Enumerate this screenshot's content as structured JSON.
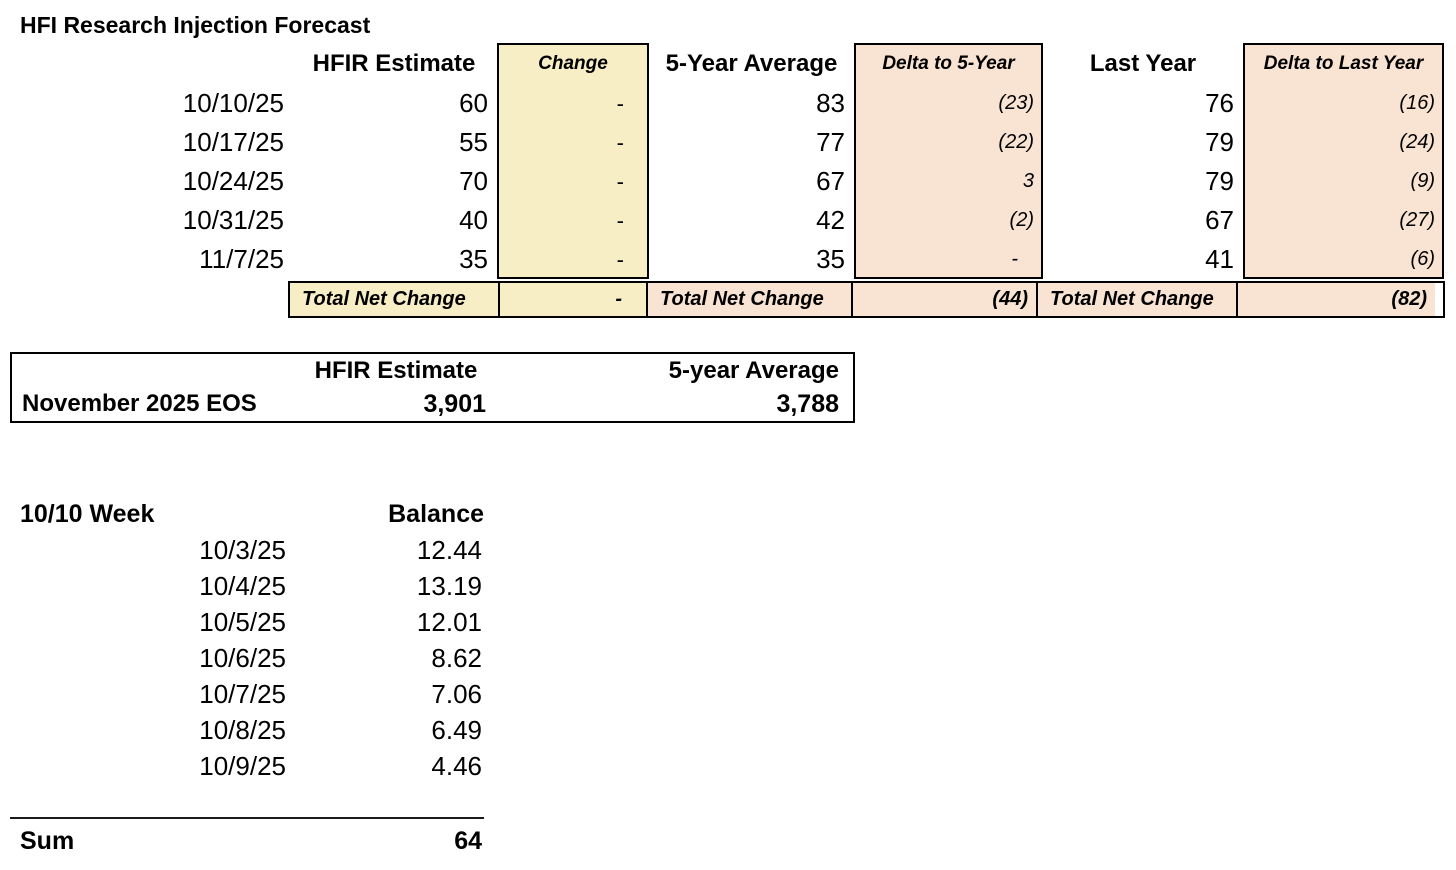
{
  "title": "HFI Research Injection Forecast",
  "colors": {
    "box_yellow": "#F7EEC5",
    "box_peach": "#F9E3D2",
    "grid_border": "#000000"
  },
  "forecast_table": {
    "headers": {
      "estimate": "HFIR Estimate",
      "change": "Change",
      "five_year_avg": "5-Year Average",
      "delta_five_year": "Delta to 5-Year",
      "last_year": "Last Year",
      "delta_last_year": "Delta to Last Year"
    },
    "rows": [
      {
        "date": "10/10/25",
        "estimate": "60",
        "change": "-",
        "five_year_avg": "83",
        "delta_five_year": "(23)",
        "last_year": "76",
        "delta_last_year": "(16)"
      },
      {
        "date": "10/17/25",
        "estimate": "55",
        "change": "-",
        "five_year_avg": "77",
        "delta_five_year": "(22)",
        "last_year": "79",
        "delta_last_year": "(24)"
      },
      {
        "date": "10/24/25",
        "estimate": "70",
        "change": "-",
        "five_year_avg": "67",
        "delta_five_year": "3",
        "last_year": "79",
        "delta_last_year": "(9)"
      },
      {
        "date": "10/31/25",
        "estimate": "40",
        "change": "-",
        "five_year_avg": "42",
        "delta_five_year": "(2)",
        "last_year": "67",
        "delta_last_year": "(27)"
      },
      {
        "date": "11/7/25",
        "estimate": "35",
        "change": "-",
        "five_year_avg": "35",
        "delta_five_year": "-",
        "last_year": "41",
        "delta_last_year": "(6)"
      }
    ],
    "total_row": {
      "label": "Total Net Change",
      "change": "-",
      "delta_five_year": "(44)",
      "delta_last_year": "(82)"
    }
  },
  "eos_table": {
    "headers": {
      "estimate": "HFIR Estimate",
      "five_year_avg": "5-year Average"
    },
    "row_label": "November 2025 EOS",
    "estimate": "3,901",
    "five_year_avg": "3,788"
  },
  "week_table": {
    "title": "10/10 Week",
    "balance_header": "Balance",
    "rows": [
      {
        "date": "10/3/25",
        "balance": "12.44"
      },
      {
        "date": "10/4/25",
        "balance": "13.19"
      },
      {
        "date": "10/5/25",
        "balance": "12.01"
      },
      {
        "date": "10/6/25",
        "balance": "8.62"
      },
      {
        "date": "10/7/25",
        "balance": "7.06"
      },
      {
        "date": "10/8/25",
        "balance": "6.49"
      },
      {
        "date": "10/9/25",
        "balance": "4.46"
      }
    ],
    "sum_label": "Sum",
    "sum_value": "64"
  }
}
